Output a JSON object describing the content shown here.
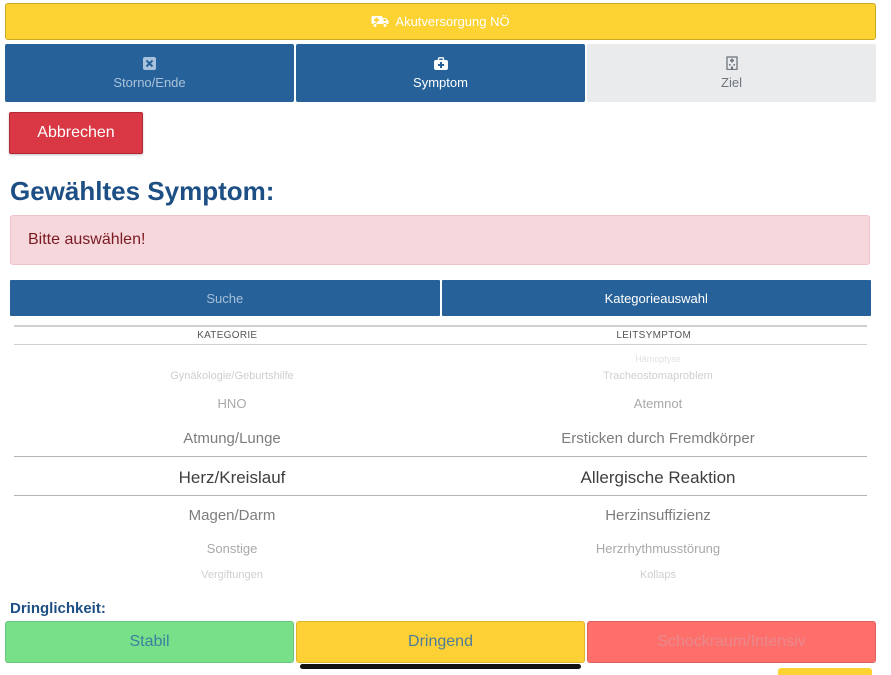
{
  "banner": {
    "label": "Akutversorgung NÖ",
    "icon": "ambulance-icon"
  },
  "tabs": [
    {
      "label": "Storno/Ende",
      "icon": "close-square-icon"
    },
    {
      "label": "Symptom",
      "icon": "medical-kit-icon"
    },
    {
      "label": "Ziel",
      "icon": "hospital-icon"
    }
  ],
  "cancel_button": {
    "label": "Abbrechen"
  },
  "heading": "Gewähltes Symptom:",
  "alert": "Bitte auswählen!",
  "search_tabs": {
    "search": "Suche",
    "category": "Kategorieauswahl"
  },
  "picker": {
    "headers": {
      "category": "KATEGORIE",
      "symptom": "LEITSYMPTOM"
    },
    "categories": [
      "Gynäkologie/Geburtshilfe",
      "HNO",
      "Atmung/Lunge",
      "Herz/Kreislauf",
      "Magen/Darm",
      "Sonstige",
      "Vergiftungen"
    ],
    "symptoms": [
      "Hämoptyse",
      "Tracheostomaproblem",
      "Atemnot",
      "Ersticken durch Fremdkörper",
      "Allergische Reaktion",
      "Herzinsuffizienz",
      "Herzrhythmusstörung",
      "Kollaps"
    ],
    "selected_category": "Herz/Kreislauf",
    "selected_symptom": "Allergische Reaktion"
  },
  "urgency": {
    "label": "Dringlichkeit:",
    "options": [
      "Stabil",
      "Dringend",
      "Schockraum/Intensiv"
    ]
  },
  "colors": {
    "banner": "#fdd233",
    "tab_active": "#266299",
    "danger": "#d93744",
    "heading": "#1d4f85",
    "stabil": "#79e08a",
    "dringend": "#fdd035",
    "schockraum": "#fe6f6c"
  }
}
